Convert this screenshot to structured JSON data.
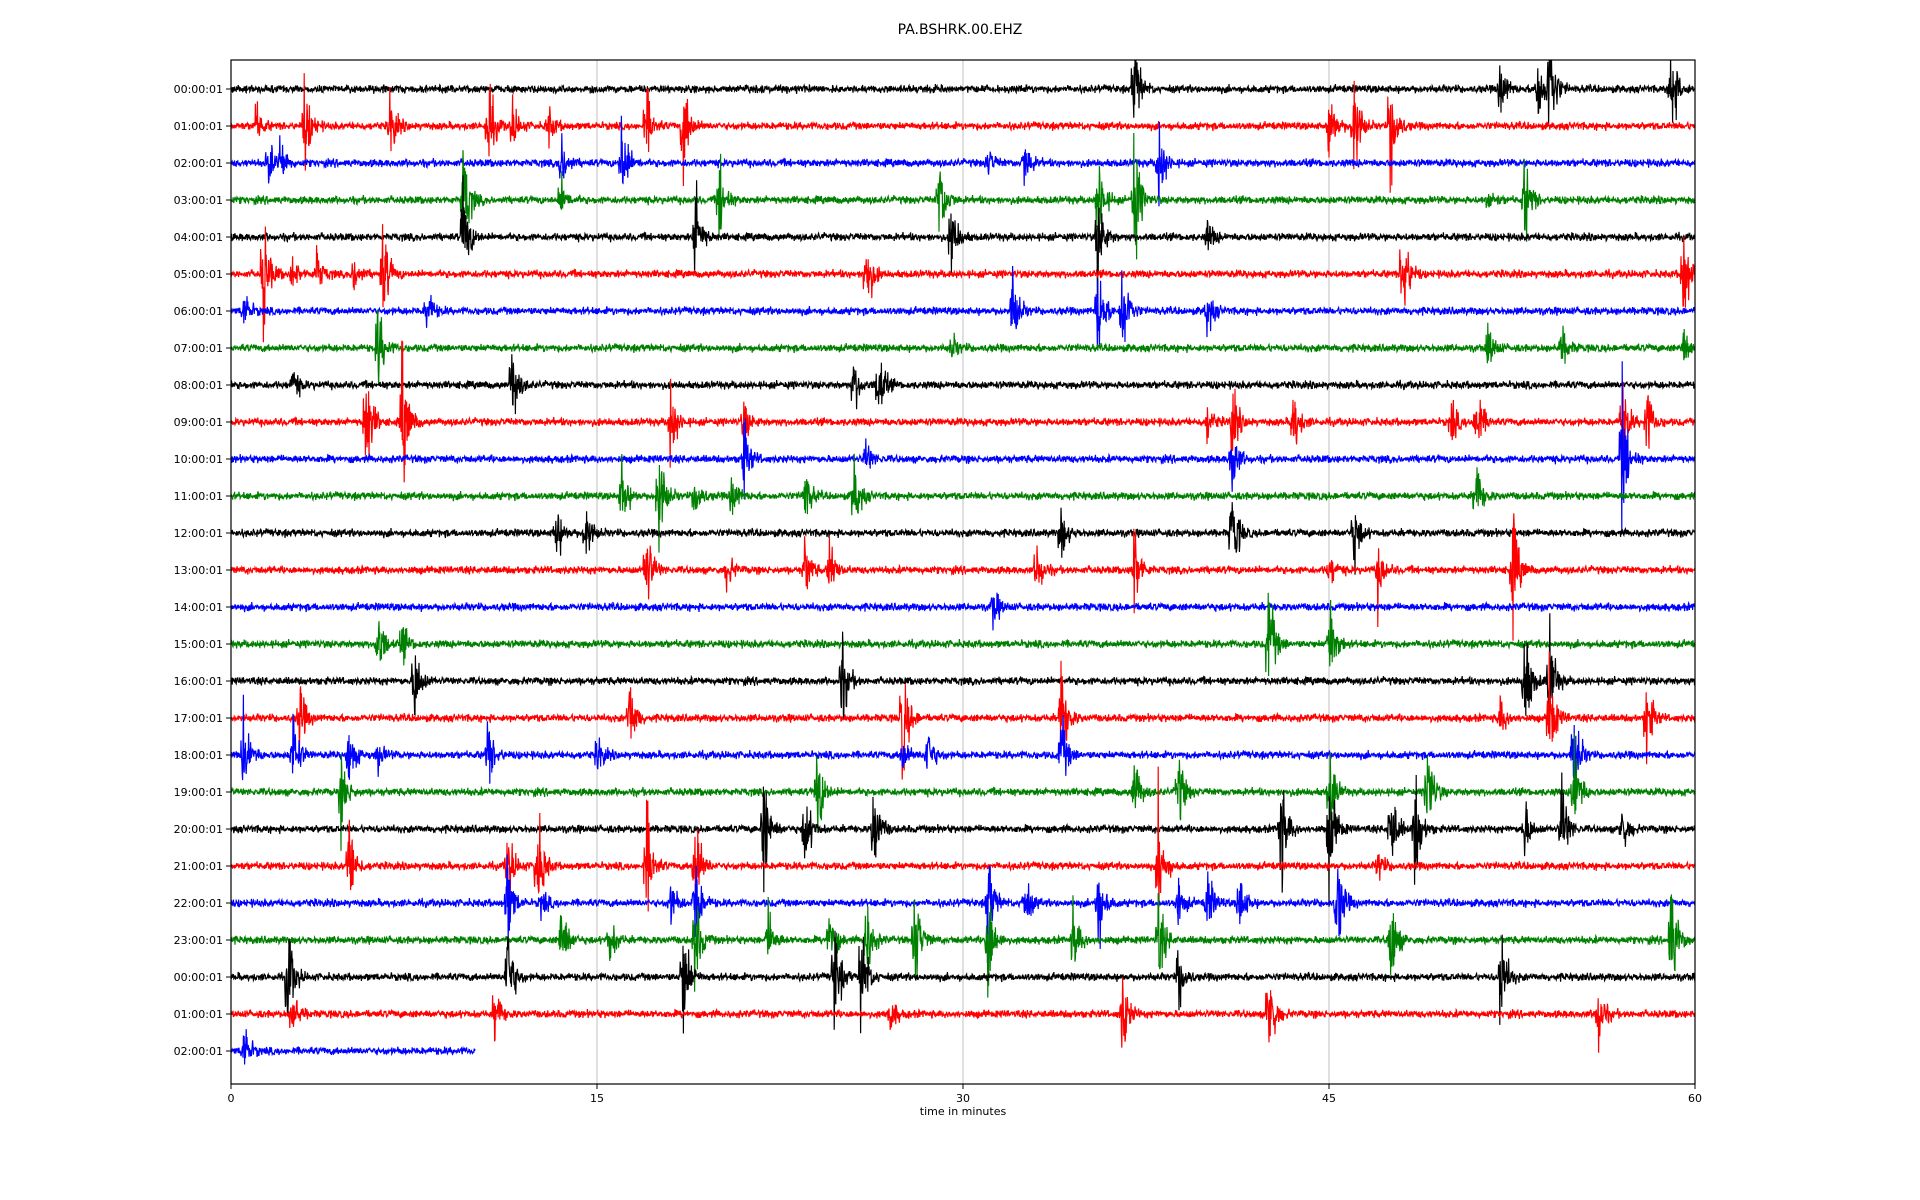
{
  "chart_data": {
    "type": "line",
    "title": "PA.BSHRK.00.EHZ",
    "xlabel": "time in minutes",
    "ylabel": "",
    "xlim": [
      0,
      60
    ],
    "xticks": [
      "0",
      "15",
      "30",
      "45",
      "60"
    ],
    "xtick_values": [
      0,
      15,
      30,
      45,
      60
    ],
    "grid": "vertical at 15, 30, 45",
    "colors": [
      "#000000",
      "#ff0000",
      "#0000ff",
      "#008000"
    ],
    "traces": [
      {
        "label": "00:00:01",
        "events": [
          37,
          52,
          53.5,
          54,
          59
        ]
      },
      {
        "label": "01:00:01",
        "events": [
          1,
          3,
          6.5,
          10.5,
          11.5,
          13,
          17,
          18.5,
          45,
          46,
          47.5
        ]
      },
      {
        "label": "02:00:01",
        "events": [
          1.5,
          2,
          13.5,
          16,
          31,
          32.5,
          38
        ]
      },
      {
        "label": "03:00:01",
        "events": [
          9.5,
          13.5,
          20,
          29,
          35.5,
          37,
          51.5,
          53
        ]
      },
      {
        "label": "04:00:01",
        "events": [
          9.5,
          19,
          29.5,
          35.5,
          40
        ]
      },
      {
        "label": "05:00:01",
        "events": [
          1.3,
          2.5,
          3.5,
          5,
          6.2,
          26,
          48,
          59.5
        ]
      },
      {
        "label": "06:00:01",
        "events": [
          0.5,
          8,
          32,
          35.5,
          36.5,
          40
        ]
      },
      {
        "label": "07:00:01",
        "events": [
          6,
          29.5,
          51.5,
          54.5,
          59.5
        ]
      },
      {
        "label": "08:00:01",
        "events": [
          2.5,
          11.5,
          25.5,
          26.5
        ]
      },
      {
        "label": "09:00:01",
        "events": [
          5.5,
          7,
          18,
          21,
          40,
          41,
          43.5,
          50,
          51,
          57,
          58
        ]
      },
      {
        "label": "10:00:01",
        "events": [
          21,
          26,
          41,
          57
        ]
      },
      {
        "label": "11:00:01",
        "events": [
          16,
          17.5,
          19,
          20.5,
          23.5,
          25.5,
          51
        ]
      },
      {
        "label": "12:00:01",
        "events": [
          13.3,
          14.5,
          34,
          41,
          46
        ]
      },
      {
        "label": "13:00:01",
        "events": [
          17,
          20.3,
          23.5,
          24.5,
          33,
          37,
          45,
          47,
          52.5
        ]
      },
      {
        "label": "14:00:01",
        "events": [
          31.2
        ]
      },
      {
        "label": "15:00:01",
        "events": [
          6,
          7,
          42.5,
          45
        ]
      },
      {
        "label": "16:00:01",
        "events": [
          7.5,
          25,
          53,
          54
        ]
      },
      {
        "label": "17:00:01",
        "events": [
          2.8,
          16.3,
          27.5,
          34,
          52,
          54,
          58
        ]
      },
      {
        "label": "18:00:01",
        "events": [
          0.5,
          2.5,
          4.8,
          6,
          10.5,
          15,
          27.5,
          28.5,
          34,
          55
        ]
      },
      {
        "label": "19:00:01",
        "events": [
          4.5,
          24,
          37,
          38.8,
          45,
          49,
          55
        ]
      },
      {
        "label": "20:00:01",
        "events": [
          21.8,
          23.5,
          26.3,
          43,
          45,
          47.5,
          48.5,
          53,
          54.5,
          57
        ]
      },
      {
        "label": "21:00:01",
        "events": [
          4.8,
          11.3,
          12.5,
          17,
          19,
          38,
          47
        ]
      },
      {
        "label": "22:00:01",
        "events": [
          11.3,
          12.7,
          18,
          19,
          31,
          32.5,
          35.5,
          38.8,
          40,
          41.3,
          45.3
        ]
      },
      {
        "label": "23:00:01",
        "events": [
          13.5,
          15.5,
          19,
          22,
          24.5,
          26,
          28,
          31,
          34.5,
          38,
          47.5,
          59
        ]
      },
      {
        "label": "00:00:01",
        "events": [
          2.3,
          11.3,
          18.5,
          24.7,
          25.8,
          38.8,
          52
        ]
      },
      {
        "label": "01:00:01",
        "events": [
          2.5,
          10.8,
          27,
          36.5,
          42.5,
          56
        ]
      },
      {
        "label": "02:00:01",
        "events": [
          0.5
        ],
        "end": 10
      }
    ]
  }
}
